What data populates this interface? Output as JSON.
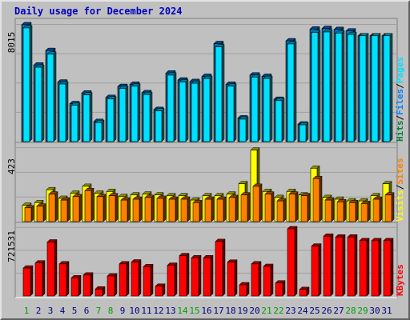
{
  "title": "Daily usage for December 2024",
  "chart_data": [
    {
      "type": "bar",
      "name": "pages_files_hits",
      "ylabel_max": "8015",
      "ymax": 8015,
      "legend": {
        "parts": [
          "Pages",
          "Files",
          "Hits"
        ],
        "colors": [
          "#00e0ff",
          "#0080ff",
          "#008040"
        ]
      },
      "x": [
        "1",
        "2",
        "3",
        "4",
        "5",
        "6",
        "7",
        "8",
        "9",
        "10",
        "11",
        "12",
        "13",
        "14",
        "15",
        "16",
        "17",
        "18",
        "19",
        "20",
        "21",
        "22",
        "23",
        "24",
        "25",
        "26",
        "27",
        "28",
        "29",
        "30",
        "31"
      ],
      "weekend_days": [
        1,
        7,
        8,
        14,
        15,
        21,
        22,
        28,
        29
      ],
      "series": [
        {
          "name": "Hits",
          "color": "#00b0b8",
          "values": [
            8015,
            5250,
            6250,
            4080,
            2600,
            3330,
            1380,
            3030,
            3780,
            3930,
            3350,
            2200,
            4700,
            4220,
            4120,
            4470,
            6720,
            3930,
            1620,
            4570,
            4470,
            2900,
            6910,
            1200,
            7720,
            7760,
            7690,
            7590,
            7260,
            7260,
            7260
          ]
        },
        {
          "name": "Files",
          "color": "#0080ff",
          "values": [
            8015,
            5250,
            6250,
            4080,
            2600,
            3330,
            1380,
            3030,
            3780,
            3930,
            3350,
            2200,
            4700,
            4220,
            4120,
            4470,
            6720,
            3930,
            1620,
            4570,
            4470,
            2900,
            6910,
            1200,
            7720,
            7760,
            7690,
            7590,
            7260,
            7260,
            7260
          ]
        },
        {
          "name": "Pages",
          "color": "#00e0ff",
          "values": [
            7800,
            5100,
            6000,
            3950,
            2500,
            3200,
            1300,
            2930,
            3650,
            3800,
            3230,
            2110,
            4560,
            4090,
            4000,
            4330,
            6500,
            3800,
            1540,
            4430,
            4330,
            2810,
            6700,
            1150,
            7480,
            7520,
            7450,
            7350,
            7260,
            7260,
            7260
          ]
        }
      ]
    },
    {
      "type": "bar",
      "name": "sites_visits",
      "ylabel_max": "423",
      "ymax": 423,
      "legend": {
        "parts": [
          "Sites",
          "Visits"
        ],
        "colors": [
          "#ff8000",
          "#ffff00"
        ]
      },
      "series": [
        {
          "name": "Visits",
          "color": "#ffff00",
          "values": [
            95,
            110,
            185,
            135,
            165,
            205,
            165,
            175,
            145,
            155,
            160,
            155,
            150,
            150,
            125,
            150,
            150,
            160,
            220,
            415,
            175,
            140,
            175,
            155,
            310,
            140,
            130,
            120,
            120,
            150,
            220
          ]
        },
        {
          "name": "Sites",
          "color": "#ff8000",
          "values": [
            80,
            90,
            160,
            125,
            145,
            180,
            145,
            150,
            125,
            130,
            140,
            135,
            130,
            130,
            110,
            130,
            130,
            140,
            155,
            205,
            160,
            120,
            160,
            150,
            250,
            125,
            115,
            110,
            105,
            130,
            155
          ]
        }
      ]
    },
    {
      "type": "bar",
      "name": "kbytes",
      "ylabel_max": "721531",
      "ymax": 721531,
      "legend": {
        "parts": [
          "KBytes"
        ],
        "colors": [
          "#ff0000"
        ]
      },
      "series": [
        {
          "name": "KBytes",
          "color": "#ff0000",
          "values": [
            300000,
            355000,
            580000,
            345000,
            195000,
            225000,
            75000,
            215000,
            345000,
            365000,
            315000,
            105000,
            330000,
            433000,
            410000,
            410000,
            585000,
            363000,
            120000,
            345000,
            318000,
            140000,
            721531,
            70000,
            536000,
            642000,
            633000,
            633000,
            594000,
            594000,
            594000
          ]
        }
      ]
    }
  ]
}
